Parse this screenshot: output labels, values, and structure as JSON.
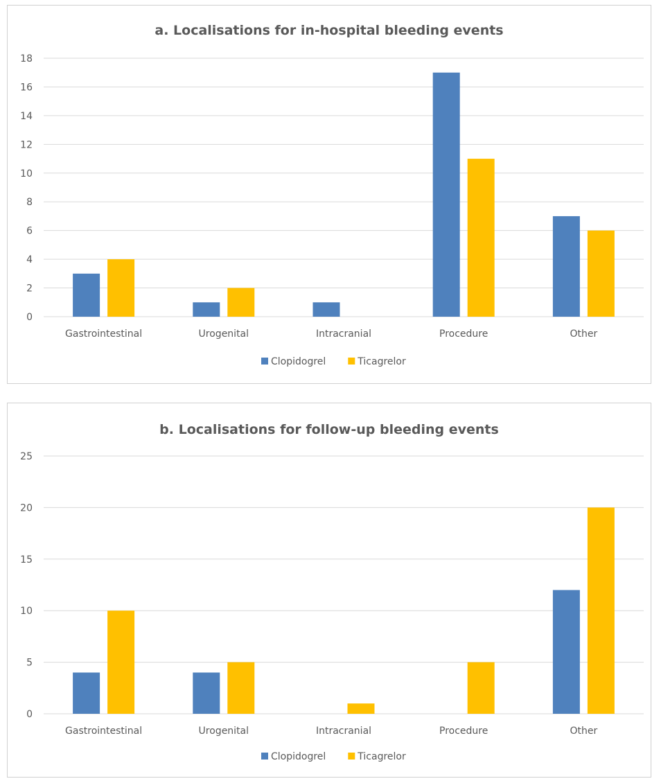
{
  "chart_data": [
    {
      "type": "bar",
      "title": "a. Localisations for in-hospital bleeding events",
      "categories": [
        "Gastrointestinal",
        "Urogenital",
        "Intracranial",
        "Procedure",
        "Other"
      ],
      "series": [
        {
          "name": "Clopidogrel",
          "color": "#4f81bd",
          "values": [
            3,
            1,
            1,
            17,
            7
          ]
        },
        {
          "name": "Ticagrelor",
          "color": "#ffc000",
          "values": [
            4,
            2,
            0,
            11,
            6
          ]
        }
      ],
      "ylim": [
        0,
        18
      ],
      "yticks": [
        0,
        2,
        4,
        6,
        8,
        10,
        12,
        14,
        16,
        18
      ],
      "grid": true,
      "legend": "bottom"
    },
    {
      "type": "bar",
      "title": "b. Localisations for follow-up bleeding events",
      "categories": [
        "Gastrointestinal",
        "Urogenital",
        "Intracranial",
        "Procedure",
        "Other"
      ],
      "series": [
        {
          "name": "Clopidogrel",
          "color": "#4f81bd",
          "values": [
            4,
            4,
            0,
            0,
            12
          ]
        },
        {
          "name": "Ticagrelor",
          "color": "#ffc000",
          "values": [
            10,
            5,
            1,
            5,
            20
          ]
        }
      ],
      "ylim": [
        0,
        25
      ],
      "yticks": [
        0,
        5,
        10,
        15,
        20,
        25
      ],
      "grid": true,
      "legend": "bottom"
    }
  ]
}
